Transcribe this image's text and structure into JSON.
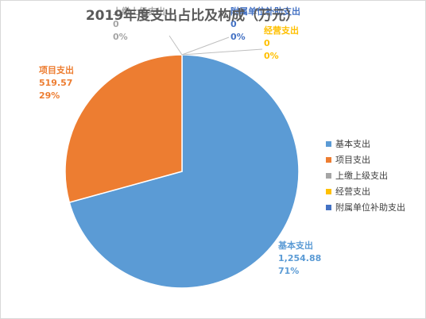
{
  "chart_data": {
    "type": "pie",
    "title": "2019年度支出占比及构成（万元）",
    "series": [
      {
        "name": "基本支出",
        "value": 1254.88,
        "value_label": "1,254.88",
        "percent_label": "71%",
        "color": "#5b9bd5"
      },
      {
        "name": "项目支出",
        "value": 519.57,
        "value_label": "519.57",
        "percent_label": "29%",
        "color": "#ed7d31"
      },
      {
        "name": "上缴上级支出",
        "value": 0,
        "value_label": "0",
        "percent_label": "0%",
        "color": "#a5a5a5"
      },
      {
        "name": "经营支出",
        "value": 0,
        "value_label": "0",
        "percent_label": "0%",
        "color": "#ffc000"
      },
      {
        "name": "附属单位补助支出",
        "value": 0,
        "value_label": "0",
        "percent_label": "0%",
        "color": "#4472c4"
      }
    ],
    "legend_position": "right",
    "label_color_by_series": true
  }
}
